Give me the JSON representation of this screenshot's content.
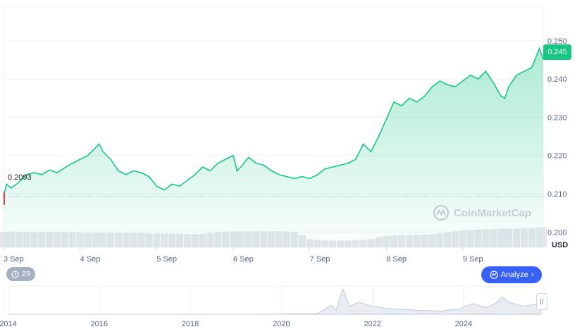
{
  "chart_data": {
    "type": "area",
    "currency": "USD",
    "y_axis_label": "USD",
    "ylim": [
      0.196,
      0.259
    ],
    "y_ticks": [
      0.2,
      0.21,
      0.22,
      0.23,
      0.24,
      0.25
    ],
    "y_tick_labels": [
      "0.200",
      "0.210",
      "0.220",
      "0.230",
      "0.240",
      "0.250"
    ],
    "x_ticks": [
      0,
      1,
      2,
      3,
      4,
      5,
      6
    ],
    "x_tick_labels": [
      "3 Sep",
      "4 Sep",
      "5 Sep",
      "6 Sep",
      "7 Sep",
      "8 Sep",
      "9 Sep"
    ],
    "xlim": [
      0,
      7.05
    ],
    "open_price": 0.2093,
    "open_price_label": "0.2093",
    "current_price": 0.245,
    "current_price_label": "0.245",
    "colors": {
      "line": "#16c784",
      "down": "#ea3943",
      "tag": "#16c784",
      "dotted": "#a6b0c3"
    },
    "x": [
      0.0,
      0.04,
      0.1,
      0.2,
      0.3,
      0.4,
      0.5,
      0.6,
      0.7,
      0.8,
      0.9,
      1.0,
      1.1,
      1.2,
      1.25,
      1.3,
      1.4,
      1.5,
      1.6,
      1.7,
      1.8,
      1.9,
      2.0,
      2.1,
      2.2,
      2.3,
      2.4,
      2.5,
      2.6,
      2.7,
      2.8,
      2.9,
      3.0,
      3.05,
      3.1,
      3.2,
      3.3,
      3.4,
      3.5,
      3.6,
      3.7,
      3.8,
      3.9,
      4.0,
      4.1,
      4.2,
      4.3,
      4.4,
      4.5,
      4.6,
      4.7,
      4.8,
      4.9,
      5.0,
      5.1,
      5.2,
      5.3,
      5.4,
      5.5,
      5.6,
      5.7,
      5.8,
      5.9,
      6.0,
      6.1,
      6.2,
      6.3,
      6.4,
      6.5,
      6.55,
      6.6,
      6.7,
      6.8,
      6.9,
      7.0,
      7.05
    ],
    "price": [
      0.2093,
      0.2125,
      0.2115,
      0.213,
      0.215,
      0.2155,
      0.215,
      0.2162,
      0.2155,
      0.2168,
      0.218,
      0.219,
      0.22,
      0.222,
      0.223,
      0.221,
      0.219,
      0.216,
      0.215,
      0.216,
      0.2155,
      0.2145,
      0.212,
      0.211,
      0.2125,
      0.212,
      0.2135,
      0.215,
      0.217,
      0.216,
      0.218,
      0.219,
      0.22,
      0.216,
      0.217,
      0.2195,
      0.218,
      0.2175,
      0.216,
      0.215,
      0.2145,
      0.214,
      0.2145,
      0.214,
      0.215,
      0.2165,
      0.217,
      0.2175,
      0.218,
      0.219,
      0.223,
      0.221,
      0.225,
      0.2295,
      0.234,
      0.233,
      0.235,
      0.234,
      0.2355,
      0.238,
      0.2395,
      0.2385,
      0.238,
      0.2395,
      0.241,
      0.24,
      0.242,
      0.239,
      0.2355,
      0.235,
      0.238,
      0.241,
      0.242,
      0.243,
      0.248,
      0.245
    ],
    "volume_relative": [
      0.75,
      0.75,
      0.76,
      0.75,
      0.73,
      0.73,
      0.72,
      0.73,
      0.72,
      0.72,
      0.72,
      0.72,
      0.71,
      0.7,
      0.7,
      0.7,
      0.7,
      0.69,
      0.69,
      0.69,
      0.69,
      0.68,
      0.68,
      0.67,
      0.67,
      0.66,
      0.65,
      0.64,
      0.66,
      0.7,
      0.74,
      0.76,
      0.77,
      0.76,
      0.77,
      0.78,
      0.78,
      0.78,
      0.78,
      0.78,
      0.77,
      0.72,
      0.6,
      0.4,
      0.35,
      0.33,
      0.33,
      0.33,
      0.33,
      0.34,
      0.35,
      0.4,
      0.5,
      0.55,
      0.58,
      0.6,
      0.6,
      0.61,
      0.62,
      0.64,
      0.68,
      0.72,
      0.78,
      0.82,
      0.85,
      0.87,
      0.88,
      0.89,
      0.9,
      0.91,
      0.91,
      0.92,
      0.93,
      0.94,
      0.96,
      0.97
    ]
  },
  "badge": {
    "count": "29"
  },
  "analyze_button": {
    "label": "Analyze"
  },
  "watermark": {
    "text": "CoinMarketCap"
  },
  "navigator": {
    "year_labels": [
      "2014",
      "2016",
      "2018",
      "2020",
      "2022",
      "2024"
    ],
    "x": [
      2014.0,
      2016.0,
      2018.0,
      2019.5,
      2020.8,
      2021.1,
      2021.2,
      2021.35,
      2021.5,
      2021.7,
      2022.0,
      2022.3,
      2022.7,
      2023.0,
      2023.5,
      2023.9,
      2024.2,
      2024.5,
      2024.7,
      2024.85,
      2025.0,
      2025.3,
      2025.7
    ],
    "value_relative": [
      0.0,
      0.0,
      0.0,
      0.0,
      0.02,
      0.35,
      0.15,
      0.95,
      0.3,
      0.45,
      0.3,
      0.22,
      0.18,
      0.15,
      0.12,
      0.2,
      0.4,
      0.25,
      0.4,
      0.65,
      0.45,
      0.3,
      0.4
    ]
  }
}
